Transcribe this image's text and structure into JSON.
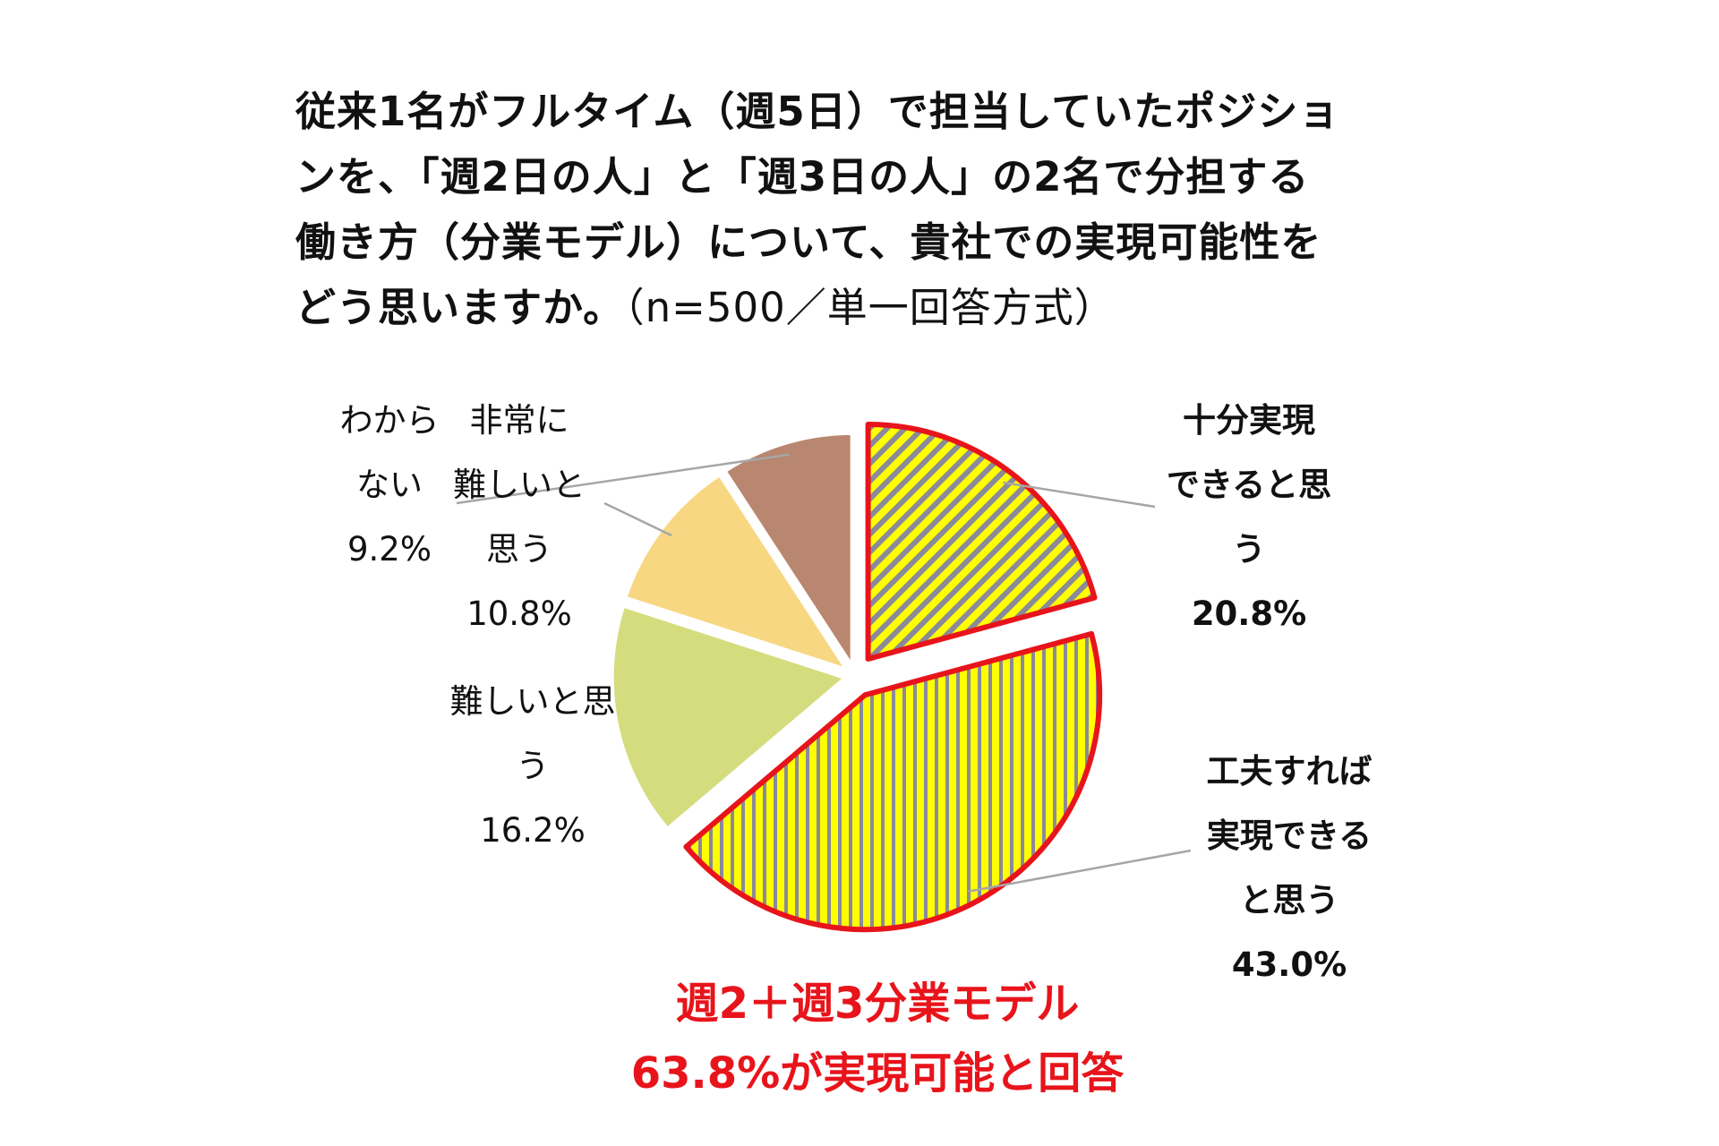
{
  "chart_data": {
    "type": "pie",
    "title_lines": [
      "従来1名がフルタイム（週5日）で担当していたポジショ",
      "ンを、「週2日の人」と「週3日の人」の2名で分担する",
      "働き方（分業モデル）について、貴社での実現可能性を",
      "どう思いますか。"
    ],
    "title_note": "（n=500／単一回答方式）",
    "slices": [
      {
        "label_lines": [
          "十分実現",
          "できると思",
          "う"
        ],
        "value_text": "20.8%",
        "value": 20.8,
        "color": "#ffff00",
        "pattern": "diagonal",
        "highlight": true
      },
      {
        "label_lines": [
          "工夫すれば",
          "実現できる",
          "と思う"
        ],
        "value_text": "43.0%",
        "value": 43.0,
        "color": "#ffff00",
        "pattern": "vertical",
        "highlight": true
      },
      {
        "label_lines": [
          "難しいと思",
          "う"
        ],
        "value_text": "16.2%",
        "value": 16.2,
        "color": "#d5dc7e",
        "pattern": "none",
        "highlight": false
      },
      {
        "label_lines": [
          "非常に",
          "難しいと",
          "思う"
        ],
        "value_text": "10.8%",
        "value": 10.8,
        "color": "#f8d783",
        "pattern": "none",
        "highlight": false
      },
      {
        "label_lines": [
          "わから",
          "ない"
        ],
        "value_text": "9.2%",
        "value": 9.2,
        "color": "#b98670",
        "pattern": "none",
        "highlight": false
      }
    ],
    "callout_lines": [
      "週2＋週3分業モデル",
      "63.8%が実現可能と回答"
    ],
    "colors": {
      "highlight_border": "#e8141b",
      "pattern_stripe": "#8a8a9a",
      "leader": "#a6a6a6"
    }
  }
}
